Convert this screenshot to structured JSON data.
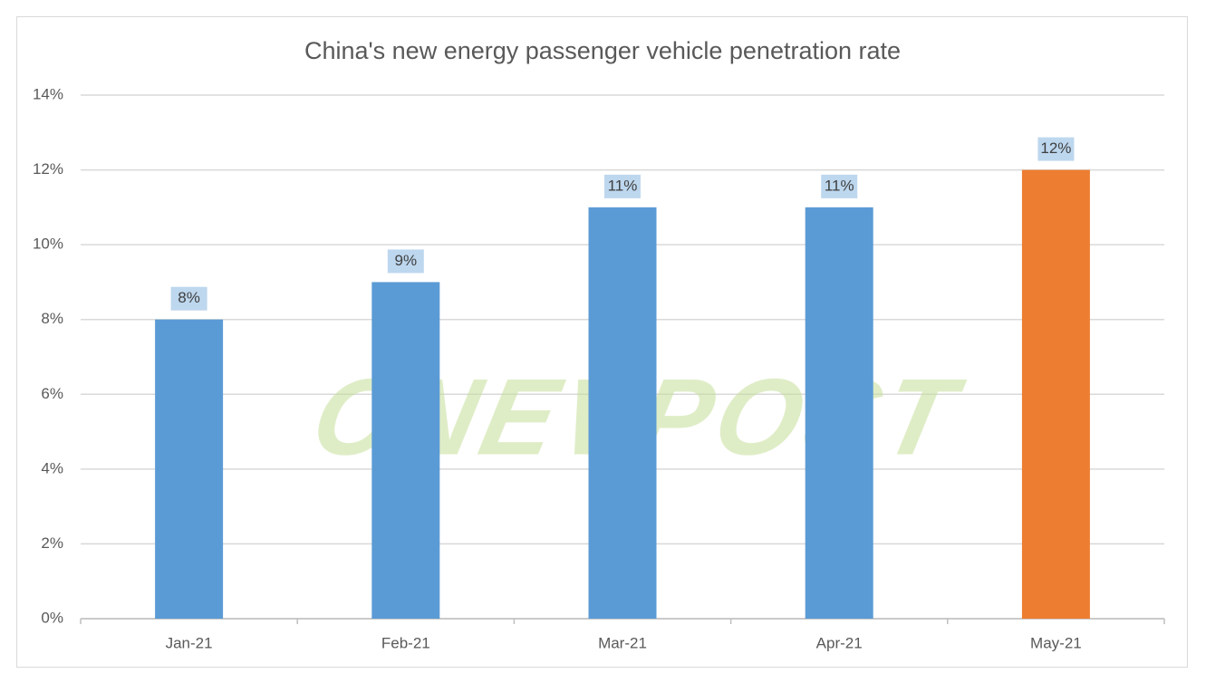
{
  "chart_data": {
    "type": "bar",
    "title": "China's new energy passenger vehicle penetration rate",
    "watermark": "CNEVPOST",
    "categories": [
      "Jan-21",
      "Feb-21",
      "Mar-21",
      "Apr-21",
      "May-21"
    ],
    "values": [
      8,
      9,
      11,
      11,
      12
    ],
    "value_labels": [
      "8%",
      "9%",
      "11%",
      "11%",
      "12%"
    ],
    "colors": [
      "#5b9bd5",
      "#5b9bd5",
      "#5b9bd5",
      "#5b9bd5",
      "#ed7d31"
    ],
    "ylim": [
      0,
      14
    ],
    "yticks": [
      {
        "value": 0,
        "label": "0%"
      },
      {
        "value": 2,
        "label": "2%"
      },
      {
        "value": 4,
        "label": "4%"
      },
      {
        "value": 6,
        "label": "6%"
      },
      {
        "value": 8,
        "label": "8%"
      },
      {
        "value": 10,
        "label": "10%"
      },
      {
        "value": 12,
        "label": "12%"
      },
      {
        "value": 14,
        "label": "14%"
      }
    ],
    "grid": true
  }
}
